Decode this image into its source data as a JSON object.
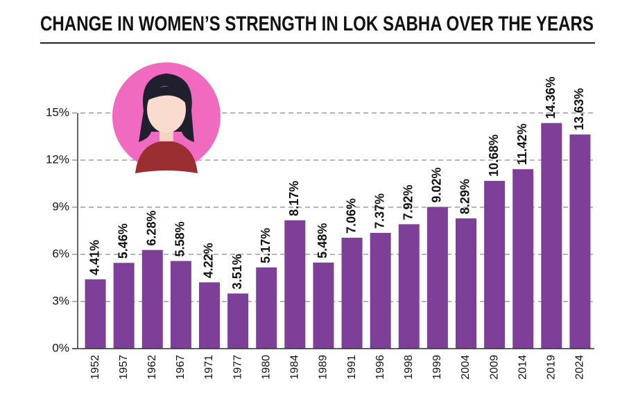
{
  "chart_data": {
    "type": "bar",
    "title": "CHANGE IN WOMEN’S STRENGTH IN LOK SABHA OVER THE YEARS",
    "categories": [
      "1952",
      "1957",
      "1962",
      "1967",
      "1971",
      "1977",
      "1980",
      "1984",
      "1989",
      "1991",
      "1996",
      "1998",
      "1999",
      "2004",
      "2009",
      "2014",
      "2019",
      "2024"
    ],
    "values": [
      4.41,
      5.46,
      6.28,
      5.58,
      4.22,
      3.51,
      5.17,
      8.17,
      5.48,
      7.06,
      7.37,
      7.92,
      9.02,
      8.29,
      10.68,
      11.42,
      14.36,
      13.63
    ],
    "value_labels": [
      "4.41%",
      "5.46%",
      "6.28%",
      "5.58%",
      "4.22%",
      "3.51%",
      "5.17%",
      "8.17%",
      "5.48%",
      "7.06%",
      "7.37%",
      "7.92%",
      "9.02%",
      "8.29%",
      "10.68%",
      "11.42%",
      "14.36%",
      "13.63%"
    ],
    "color": "#7e3f98",
    "ylim": [
      0,
      15
    ],
    "yticks": [
      {
        "value": 0,
        "label": "0%"
      },
      {
        "value": 3,
        "label": "3%"
      },
      {
        "value": 6,
        "label": "6%"
      },
      {
        "value": 9,
        "label": "9%"
      },
      {
        "value": 12,
        "label": "12%"
      },
      {
        "value": 15,
        "label": "15%"
      }
    ],
    "grid": true
  }
}
